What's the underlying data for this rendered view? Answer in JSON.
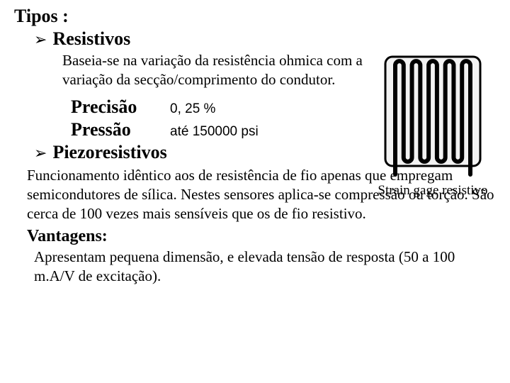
{
  "title": "Tipos :",
  "bullet1": {
    "marker": "➢",
    "heading": "Resistivos",
    "description": "Baseia-se na variação da resistência ohmica com a variação da secção/comprimento do condutor."
  },
  "specs": {
    "precision_label": "Precisão",
    "precision_value": "0, 25 %",
    "pressure_label": "Pressão",
    "pressure_value": "até 150000 psi"
  },
  "bullet2": {
    "marker": "➢",
    "heading": "Piezoresistivos",
    "description": "Funcionamento idêntico aos de resistência de fio apenas que empregam semicondutores de sílica. Nestes sensores aplica-se compressão ou torção. São cerca de 100 vezes mais sensíveis que os de fio resistivo."
  },
  "advantages": {
    "heading": "Vantagens:",
    "text": "Apresentam pequena dimensão, e elevada tensão de resposta (50  a 100 m.A/V de excitação)."
  },
  "figure": {
    "caption": "Strain gage resistivo",
    "stroke": "#000000",
    "fill": "#f2f2f2",
    "lines": 10
  }
}
